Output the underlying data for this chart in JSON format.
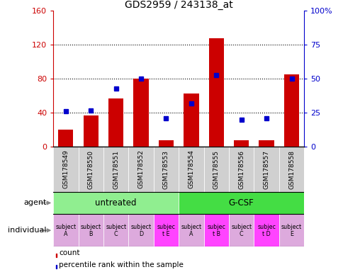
{
  "title": "GDS2959 / 243138_at",
  "samples": [
    "GSM178549",
    "GSM178550",
    "GSM178551",
    "GSM178552",
    "GSM178553",
    "GSM178554",
    "GSM178555",
    "GSM178556",
    "GSM178557",
    "GSM178558"
  ],
  "counts": [
    20,
    37,
    57,
    80,
    8,
    63,
    128,
    8,
    8,
    85
  ],
  "percentile_ranks": [
    26,
    27,
    43,
    50,
    21,
    32,
    53,
    20,
    21,
    50
  ],
  "bar_color": "#CC0000",
  "marker_color": "#0000CC",
  "left_ylim": [
    0,
    160
  ],
  "right_ylim": [
    0,
    100
  ],
  "left_yticks": [
    0,
    40,
    80,
    120,
    160
  ],
  "right_yticks": [
    0,
    25,
    50,
    75,
    100
  ],
  "right_yticklabels": [
    "0",
    "25",
    "50",
    "75",
    "100%"
  ],
  "grid_yticks": [
    40,
    80,
    120
  ],
  "bg_color": "#ffffff",
  "gsm_bg_even": "#d0d0d0",
  "gsm_bg_odd": "#c0c0c0",
  "agent_untreated_color": "#90EE90",
  "agent_gcsf_color": "#44DD44",
  "individual_normal_color": "#DDAADD",
  "individual_highlight_color": "#FF44FF",
  "individual_labels_line1": [
    "subject",
    "subject",
    "subject",
    "subject",
    "subjec",
    "subject",
    "subjec",
    "subject",
    "subjec",
    "subject"
  ],
  "individual_labels_line2": [
    "A",
    "B",
    "C",
    "D",
    "t E",
    "A",
    "t B",
    "C",
    "t D",
    "E"
  ],
  "individual_highlight": [
    false,
    false,
    false,
    false,
    true,
    false,
    true,
    false,
    true,
    false
  ],
  "marker_size": 5,
  "bar_width": 0.6
}
